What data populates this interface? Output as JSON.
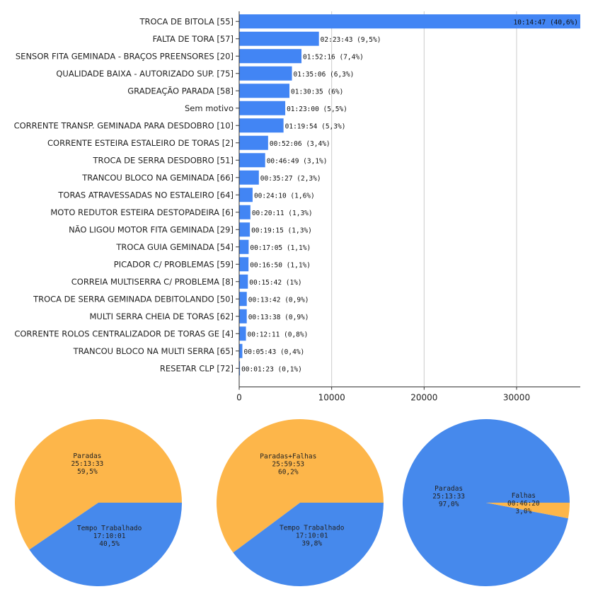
{
  "chart_data": [
    {
      "type": "bar",
      "orientation": "horizontal",
      "categories": [
        "TROCA DE BITOLA [55]",
        "FALTA DE TORA [57]",
        "SENSOR FITA GEMINADA - BRAÇOS PREENSORES [20]",
        "QUALIDADE BAIXA - AUTORIZADO SUP. [75]",
        "GRADEAÇÃO PARADA [58]",
        "Sem motivo",
        "CORRENTE TRANSP. GEMINADA PARA DESDOBRO [10]",
        "CORRENTE ESTEIRA ESTALEIRO DE TORAS [2]",
        "TROCA DE SERRA DESDOBRO [51]",
        "TRANCOU BLOCO NA GEMINADA [66]",
        "TORAS ATRAVESSADAS NO ESTALEIRO [64]",
        "MOTO REDUTOR ESTEIRA DESTOPADEIRA [6]",
        "NÃO LIGOU MOTOR FITA GEMINADA [29]",
        "TROCA GUIA GEMINADA [54]",
        "PICADOR C/ PROBLEMAS [59]",
        "CORREIA MULTISERRA C/ PROBLEMA [8]",
        "TROCA DE SERRA GEMINADA DEBITOLANDO [50]",
        "MULTI SERRA CHEIA DE TORAS [62]",
        "CORRENTE ROLOS CENTRALIZADOR DE TORAS GE [4]",
        "TRANCOU BLOCO NA MULTI SERRA [65]",
        "RESETAR CLP [72]"
      ],
      "values": [
        36887,
        8623,
        6736,
        5706,
        5435,
        4980,
        4794,
        3126,
        2809,
        2127,
        1450,
        1211,
        1155,
        1025,
        1010,
        942,
        822,
        818,
        731,
        343,
        83
      ],
      "data_labels": [
        "10:14:47 (40,6%)",
        "02:23:43 (9,5%)",
        "01:52:16 (7,4%)",
        "01:35:06 (6,3%)",
        "01:30:35 (6%)",
        "01:23:00 (5,5%)",
        "01:19:54 (5,3%)",
        "00:52:06 (3,4%)",
        "00:46:49 (3,1%)",
        "00:35:27 (2,3%)",
        "00:24:10 (1,6%)",
        "00:20:11 (1,3%)",
        "00:19:15 (1,3%)",
        "00:17:05 (1,1%)",
        "00:16:50 (1,1%)",
        "00:15:42 (1%)",
        "00:13:42 (0,9%)",
        "00:13:38 (0,9%)",
        "00:12:11 (0,8%)",
        "00:05:43 (0,4%)",
        "00:01:23 (0,1%)"
      ],
      "xlim": [
        0,
        36887
      ],
      "xticks": [
        0,
        10000,
        20000,
        30000
      ],
      "xtick_labels": [
        "0",
        "10000",
        "20000",
        "30000"
      ],
      "grid": true,
      "bar_color": "#4285f4"
    },
    {
      "type": "pie",
      "slices": [
        {
          "name": "Paradas",
          "time": "25:13:33",
          "percent_label": "59,5%",
          "value": 59.5,
          "color": "#fdb64a"
        },
        {
          "name": "Tempo Trabalhado",
          "time": "17:10:01",
          "percent_label": "40,5%",
          "value": 40.5,
          "color": "#4689ec"
        }
      ]
    },
    {
      "type": "pie",
      "slices": [
        {
          "name": "Paradas+Falhas",
          "time": "25:59:53",
          "percent_label": "60,2%",
          "value": 60.2,
          "color": "#fdb64a"
        },
        {
          "name": "Tempo Trabalhado",
          "time": "17:10:01",
          "percent_label": "39,8%",
          "value": 39.8,
          "color": "#4689ec"
        }
      ]
    },
    {
      "type": "pie",
      "slices": [
        {
          "name": "Paradas",
          "time": "25:13:33",
          "percent_label": "97,0%",
          "value": 97.0,
          "color": "#4689ec"
        },
        {
          "name": "Falhas",
          "time": "00:46:20",
          "percent_label": "3,0%",
          "value": 3.0,
          "color": "#fdb64a"
        }
      ]
    }
  ]
}
